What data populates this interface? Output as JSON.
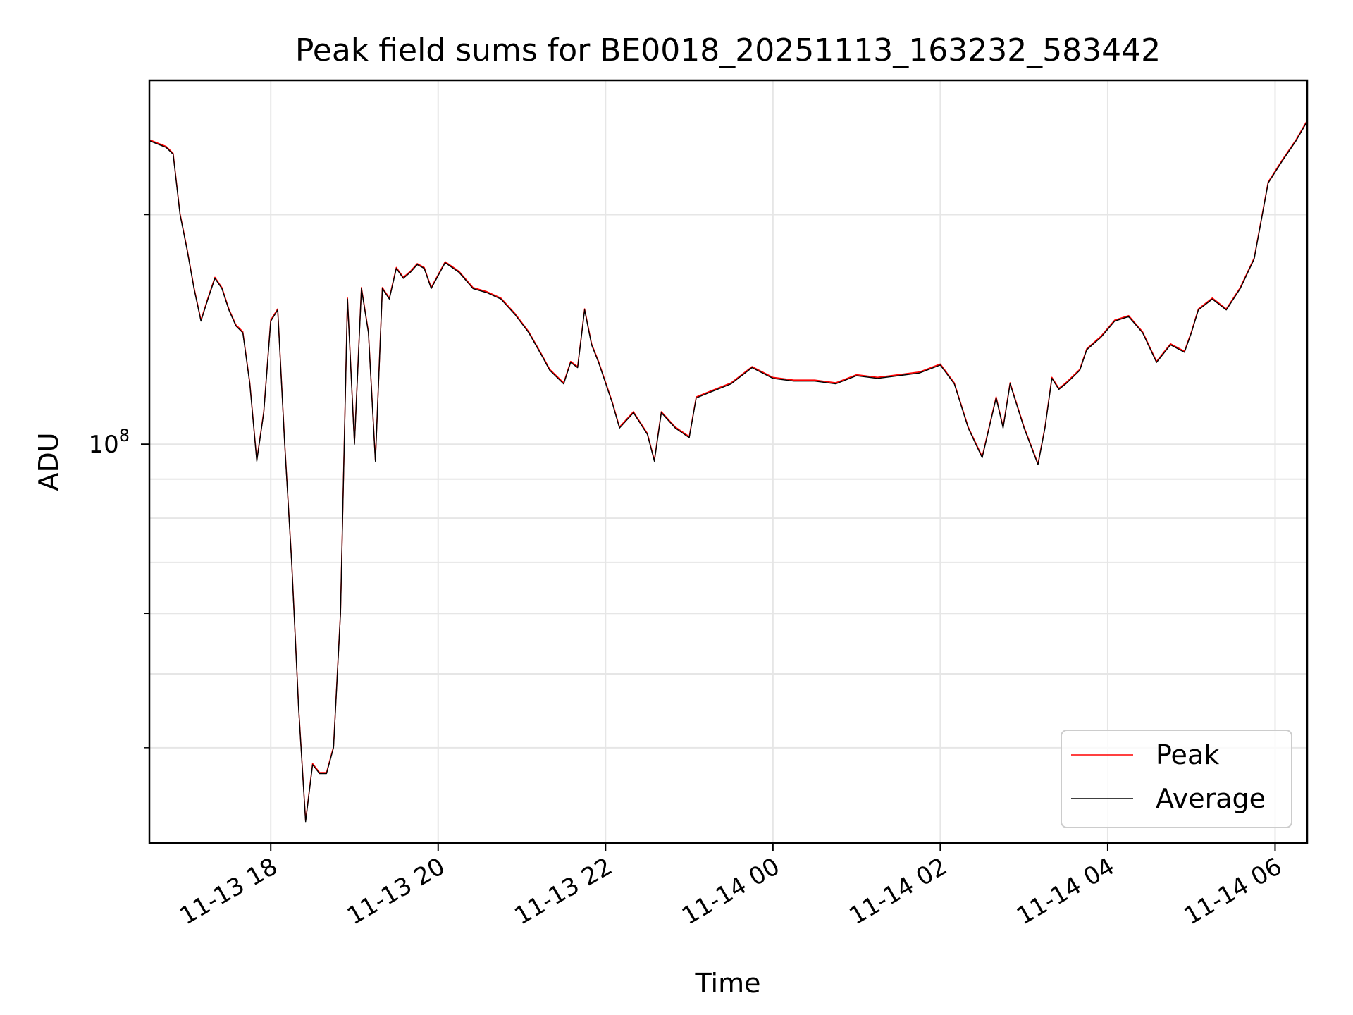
{
  "chart_data": {
    "type": "line",
    "title": "Peak field sums for BE0018_20251113_163232_583442",
    "xlabel": "Time",
    "ylabel": "ADU",
    "yscale": "log",
    "ytick_label": {
      "base": "10",
      "exp": "8"
    },
    "xlim": [
      "2025-11-13 16:33",
      "2025-11-14 06:23"
    ],
    "ylim": [
      30000000,
      300000000
    ],
    "grid": true,
    "legend_position": "lower-right",
    "x_ticks": [
      {
        "t": "2025-11-13 18:00",
        "label": "11-13 18"
      },
      {
        "t": "2025-11-13 20:00",
        "label": "11-13 20"
      },
      {
        "t": "2025-11-13 22:00",
        "label": "11-13 22"
      },
      {
        "t": "2025-11-14 00:00",
        "label": "11-14 00"
      },
      {
        "t": "2025-11-14 02:00",
        "label": "11-14 02"
      },
      {
        "t": "2025-11-14 04:00",
        "label": "11-14 04"
      },
      {
        "t": "2025-11-14 06:00",
        "label": "11-14 06"
      }
    ],
    "series": [
      {
        "name": "Peak",
        "color": "#ff0000"
      },
      {
        "name": "Average",
        "color": "#000000"
      }
    ],
    "x": [
      "2025-11-13 16:33",
      "2025-11-13 16:45",
      "2025-11-13 16:50",
      "2025-11-13 16:55",
      "2025-11-13 17:00",
      "2025-11-13 17:05",
      "2025-11-13 17:10",
      "2025-11-13 17:15",
      "2025-11-13 17:20",
      "2025-11-13 17:25",
      "2025-11-13 17:30",
      "2025-11-13 17:35",
      "2025-11-13 17:40",
      "2025-11-13 17:45",
      "2025-11-13 17:50",
      "2025-11-13 17:55",
      "2025-11-13 18:00",
      "2025-11-13 18:05",
      "2025-11-13 18:10",
      "2025-11-13 18:15",
      "2025-11-13 18:20",
      "2025-11-13 18:25",
      "2025-11-13 18:30",
      "2025-11-13 18:35",
      "2025-11-13 18:40",
      "2025-11-13 18:45",
      "2025-11-13 18:50",
      "2025-11-13 18:55",
      "2025-11-13 19:00",
      "2025-11-13 19:05",
      "2025-11-13 19:10",
      "2025-11-13 19:15",
      "2025-11-13 19:20",
      "2025-11-13 19:25",
      "2025-11-13 19:30",
      "2025-11-13 19:35",
      "2025-11-13 19:40",
      "2025-11-13 19:45",
      "2025-11-13 19:50",
      "2025-11-13 19:55",
      "2025-11-13 20:05",
      "2025-11-13 20:15",
      "2025-11-13 20:25",
      "2025-11-13 20:35",
      "2025-11-13 20:45",
      "2025-11-13 20:55",
      "2025-11-13 21:05",
      "2025-11-13 21:15",
      "2025-11-13 21:20",
      "2025-11-13 21:30",
      "2025-11-13 21:35",
      "2025-11-13 21:40",
      "2025-11-13 21:45",
      "2025-11-13 21:50",
      "2025-11-13 21:55",
      "2025-11-13 22:05",
      "2025-11-13 22:10",
      "2025-11-13 22:20",
      "2025-11-13 22:30",
      "2025-11-13 22:35",
      "2025-11-13 22:40",
      "2025-11-13 22:50",
      "2025-11-13 23:00",
      "2025-11-13 23:05",
      "2025-11-13 23:15",
      "2025-11-13 23:30",
      "2025-11-13 23:45",
      "2025-11-14 00:00",
      "2025-11-14 00:15",
      "2025-11-14 00:30",
      "2025-11-14 00:45",
      "2025-11-14 01:00",
      "2025-11-14 01:15",
      "2025-11-14 01:30",
      "2025-11-14 01:45",
      "2025-11-14 02:00",
      "2025-11-14 02:10",
      "2025-11-14 02:20",
      "2025-11-14 02:30",
      "2025-11-14 02:40",
      "2025-11-14 02:45",
      "2025-11-14 02:50",
      "2025-11-14 03:00",
      "2025-11-14 03:10",
      "2025-11-14 03:15",
      "2025-11-14 03:20",
      "2025-11-14 03:25",
      "2025-11-14 03:30",
      "2025-11-14 03:40",
      "2025-11-14 03:45",
      "2025-11-14 03:55",
      "2025-11-14 04:05",
      "2025-11-14 04:15",
      "2025-11-14 04:25",
      "2025-11-14 04:35",
      "2025-11-14 04:45",
      "2025-11-14 04:55",
      "2025-11-14 05:00",
      "2025-11-14 05:05",
      "2025-11-14 05:15",
      "2025-11-14 05:25",
      "2025-11-14 05:35",
      "2025-11-14 05:45",
      "2025-11-14 05:55",
      "2025-11-14 06:05",
      "2025-11-14 06:15",
      "2025-11-14 06:23"
    ],
    "values": [
      250000000,
      245000000,
      240000000,
      200000000,
      180000000,
      160000000,
      145000000,
      155000000,
      165000000,
      160000000,
      150000000,
      143000000,
      140000000,
      120000000,
      95000000,
      110000000,
      145000000,
      150000000,
      100000000,
      70000000,
      45000000,
      32000000,
      38000000,
      37000000,
      37000000,
      40000000,
      60000000,
      155000000,
      100000000,
      160000000,
      140000000,
      95000000,
      160000000,
      155000000,
      170000000,
      165000000,
      168000000,
      172000000,
      170000000,
      160000000,
      173000000,
      168000000,
      160000000,
      158000000,
      155000000,
      148000000,
      140000000,
      130000000,
      125000000,
      120000000,
      128000000,
      126000000,
      150000000,
      135000000,
      128000000,
      113000000,
      105000000,
      110000000,
      103000000,
      95000000,
      110000000,
      105000000,
      102000000,
      115000000,
      117000000,
      120000000,
      126000000,
      122000000,
      121000000,
      121000000,
      120000000,
      123000000,
      122000000,
      123000000,
      124000000,
      127000000,
      120000000,
      105000000,
      96000000,
      115000000,
      105000000,
      120000000,
      105000000,
      94000000,
      105000000,
      122000000,
      118000000,
      120000000,
      125000000,
      133000000,
      138000000,
      145000000,
      147000000,
      140000000,
      128000000,
      135000000,
      132000000,
      140000000,
      150000000,
      155000000,
      150000000,
      160000000,
      175000000,
      220000000,
      235000000,
      250000000,
      265000000
    ]
  }
}
